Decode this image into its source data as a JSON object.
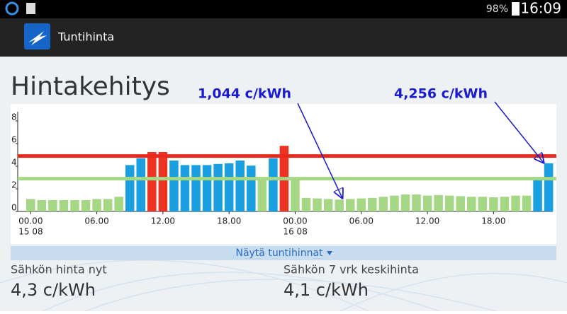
{
  "status_bar": {
    "battery": "98%",
    "time": "16:09"
  },
  "app_bar": {
    "title": "Tuntihinta"
  },
  "chart_data": {
    "type": "bar",
    "title": "Hintakehitys",
    "categories": [
      "00.00",
      null,
      null,
      null,
      null,
      null,
      "06.00",
      null,
      null,
      null,
      null,
      null,
      "12.00",
      null,
      null,
      null,
      null,
      null,
      "18.00",
      null,
      null,
      null,
      null,
      null,
      "00.00",
      null,
      null,
      null,
      null,
      null,
      "06.00",
      null,
      null,
      null,
      null,
      null,
      "12.00",
      null,
      null,
      null,
      null,
      null,
      "18.00",
      null,
      null,
      null,
      null,
      null
    ],
    "date_labels": [
      "15 08",
      null,
      null,
      null,
      null,
      null,
      null,
      null,
      null,
      null,
      null,
      null,
      null,
      null,
      null,
      null,
      null,
      null,
      null,
      null,
      null,
      null,
      null,
      null,
      "16 08",
      null,
      null,
      null,
      null,
      null,
      null,
      null,
      null,
      null,
      null,
      null,
      null,
      null,
      null,
      null,
      null,
      null,
      null,
      null,
      null,
      null,
      null,
      null
    ],
    "values": [
      1.1,
      1.0,
      1.0,
      1.0,
      1.0,
      1.0,
      1.1,
      1.1,
      1.3,
      4.1,
      4.7,
      5.25,
      5.25,
      4.5,
      4.1,
      4.1,
      4.1,
      4.2,
      4.25,
      4.5,
      4.05,
      3.0,
      4.7,
      5.8,
      2.95,
      1.2,
      1.15,
      1.1,
      1.044,
      1.1,
      1.15,
      1.2,
      1.3,
      1.4,
      1.5,
      1.5,
      1.4,
      1.45,
      1.4,
      1.35,
      1.3,
      1.3,
      1.25,
      1.3,
      1.4,
      1.4,
      2.9,
      4.256
    ],
    "colors": [
      "#a6d785",
      "#a6d785",
      "#a6d785",
      "#a6d785",
      "#a6d785",
      "#a6d785",
      "#a6d785",
      "#a6d785",
      "#a6d785",
      "#1a9fe0",
      "#1a9fe0",
      "#ee3322",
      "#ee3322",
      "#1a9fe0",
      "#1a9fe0",
      "#1a9fe0",
      "#1a9fe0",
      "#1a9fe0",
      "#1a9fe0",
      "#1a9fe0",
      "#1a9fe0",
      "#a6d785",
      "#1a9fe0",
      "#ee3322",
      "#a6d785",
      "#a6d785",
      "#a6d785",
      "#a6d785",
      "#a6d785",
      "#a6d785",
      "#a6d785",
      "#a6d785",
      "#a6d785",
      "#a6d785",
      "#a6d785",
      "#a6d785",
      "#a6d785",
      "#a6d785",
      "#a6d785",
      "#a6d785",
      "#a6d785",
      "#a6d785",
      "#a6d785",
      "#a6d785",
      "#a6d785",
      "#a6d785",
      "#1a9fe0",
      "#1a9fe0"
    ],
    "reference_lines": [
      {
        "value": 4.9,
        "color": "#e8291c"
      },
      {
        "value": 2.9,
        "color": "#a6d785"
      }
    ],
    "annotations": [
      "1,044 c/kWh",
      "4,256 c/kWh"
    ],
    "ylim": [
      0,
      8
    ],
    "yticks": [
      0,
      2,
      4,
      6,
      8
    ]
  },
  "toggle": "Näytä tuntihinnat",
  "stats": [
    {
      "label": "Sähkön hinta nyt",
      "value": "4,3 c/kWh"
    },
    {
      "label": "Sähkön 7 vrk keskihinta",
      "value": "4,1 c/kWh"
    }
  ]
}
